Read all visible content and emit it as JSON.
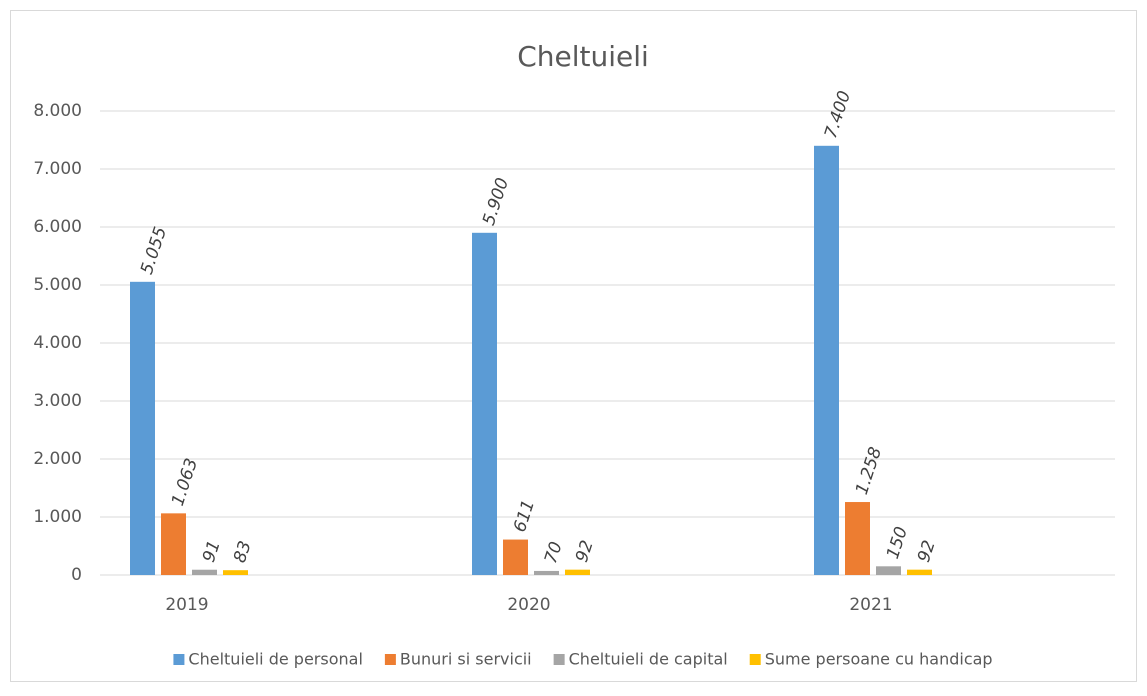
{
  "chart_data": {
    "type": "bar",
    "title": "Cheltuieli",
    "categories": [
      "2019",
      "2020",
      "2021"
    ],
    "series": [
      {
        "name": "Cheltuieli de personal",
        "color": "#5b9bd5",
        "values": [
          5055,
          5900,
          7400
        ],
        "value_labels": [
          "5.055",
          "5.900",
          "7.400"
        ]
      },
      {
        "name": "Bunuri si servicii",
        "color": "#ed7d31",
        "values": [
          1063,
          611,
          1258
        ],
        "value_labels": [
          "1.063",
          "611",
          "1.258"
        ]
      },
      {
        "name": "Cheltuieli de capital",
        "color": "#a5a5a5",
        "values": [
          91,
          70,
          150
        ],
        "value_labels": [
          "91",
          "70",
          "150"
        ]
      },
      {
        "name": "Sume persoane cu handicap",
        "color": "#ffc000",
        "values": [
          83,
          92,
          92
        ],
        "value_labels": [
          "83",
          "92",
          "92"
        ]
      }
    ],
    "ylim": [
      0,
      8000
    ],
    "yticks": [
      0,
      {
        "value": 1000,
        "label": "1.000"
      },
      {
        "value": 2000,
        "label": "2.000"
      },
      {
        "value": 3000,
        "label": "3.000"
      },
      {
        "value": 4000,
        "label": "4.000"
      },
      {
        "value": 5000,
        "label": "5.000"
      },
      {
        "value": 6000,
        "label": "6.000"
      },
      {
        "value": 7000,
        "label": "7.000"
      },
      {
        "value": 8000,
        "label": "8.000"
      }
    ],
    "grid": true,
    "legend": "bottom"
  }
}
